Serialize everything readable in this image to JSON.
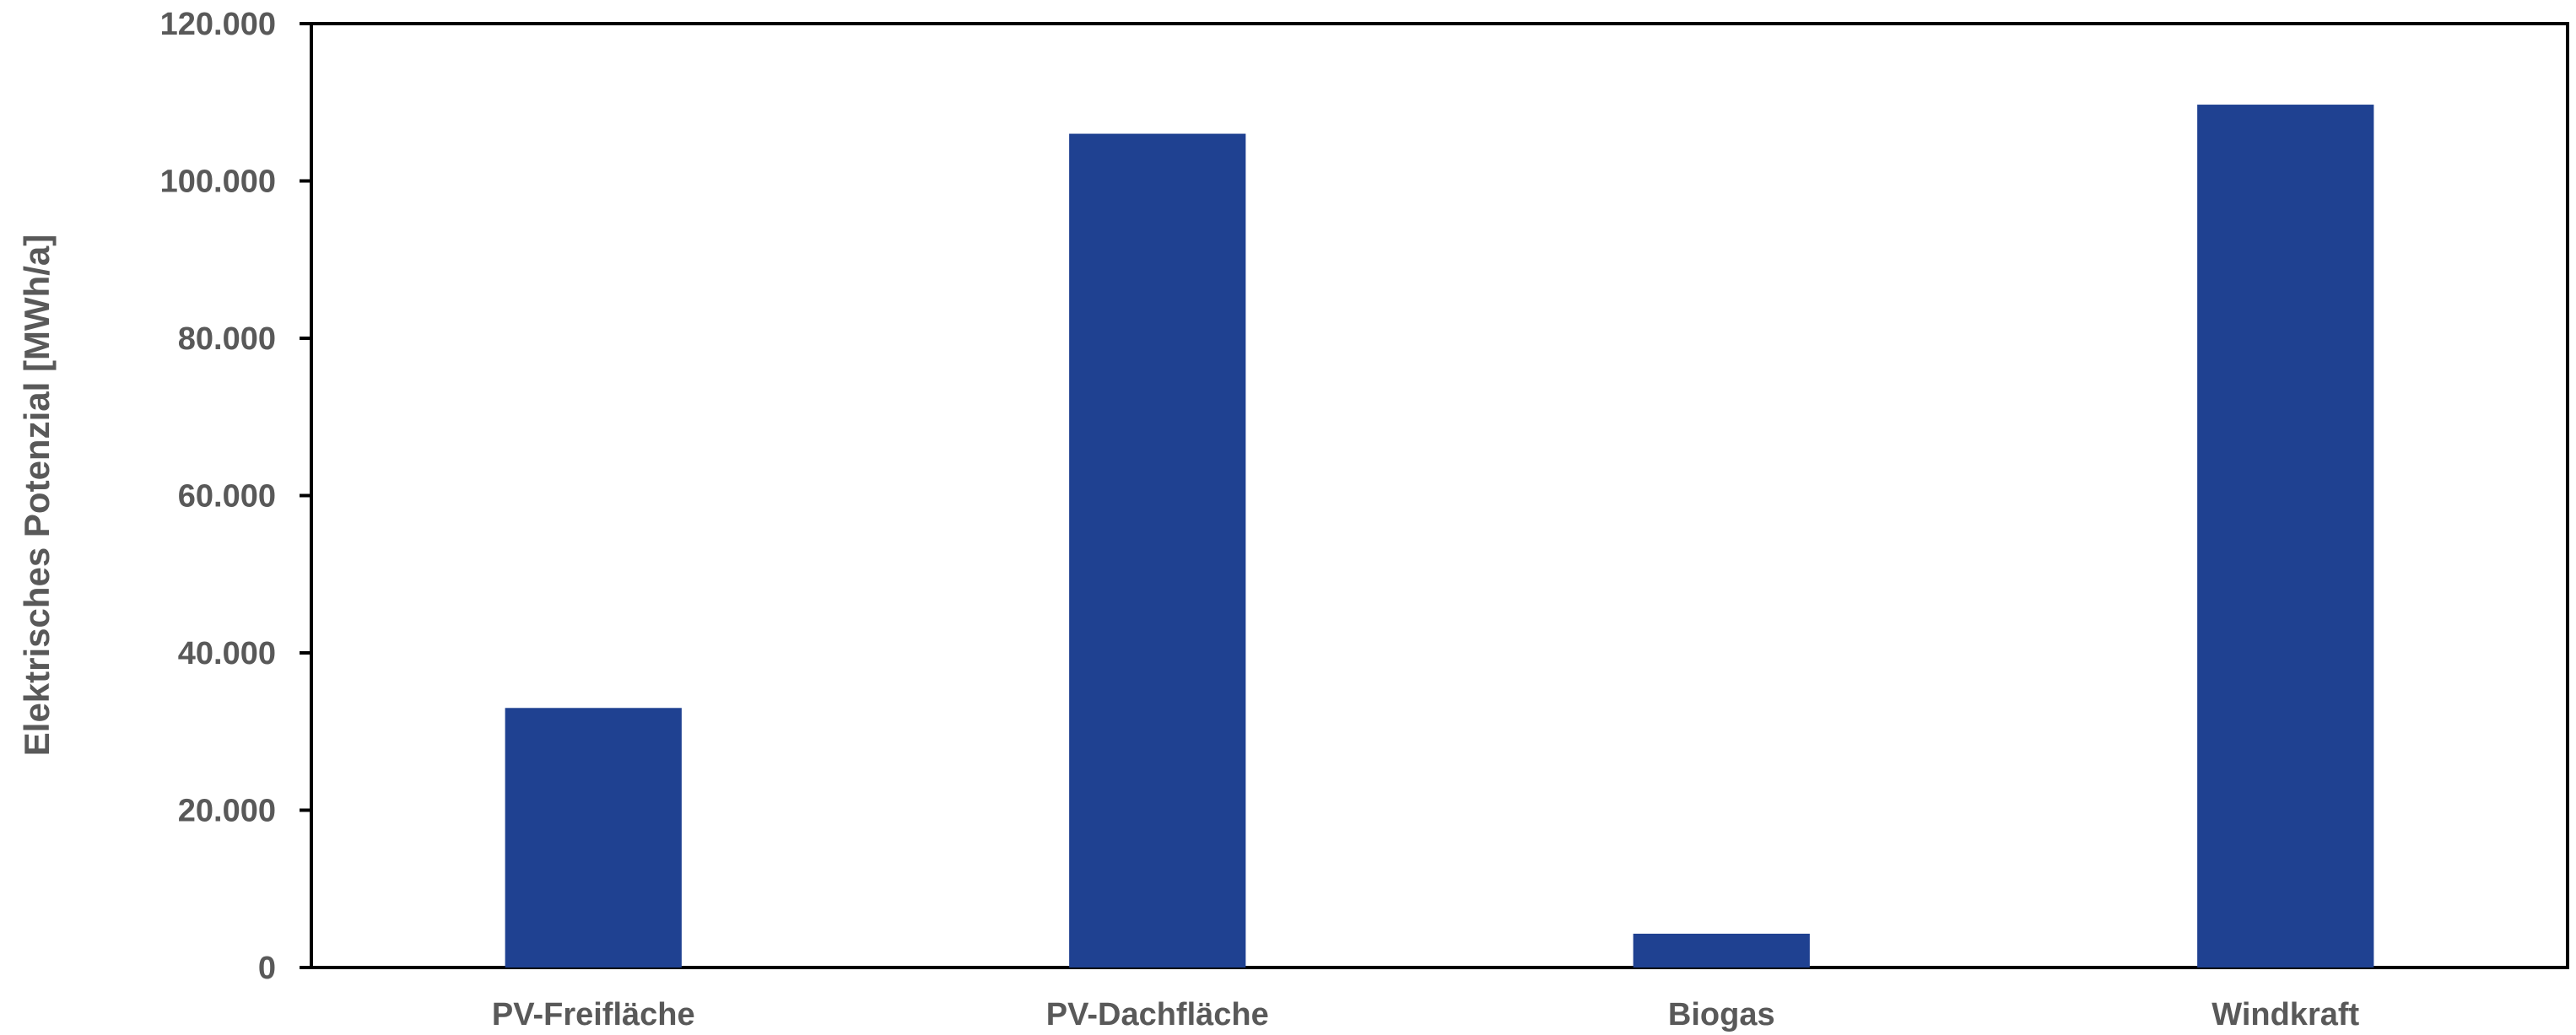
{
  "chart_data": {
    "type": "bar",
    "title": "",
    "xlabel": "",
    "ylabel": "Elektrisches Potenzial [MWh/a]",
    "categories": [
      "PV-Freifläche",
      "PV-Dachfläche",
      "Biogas",
      "Windkraft"
    ],
    "values": [
      33000,
      106000,
      4300,
      109700
    ],
    "ylim": [
      0,
      120000
    ],
    "yticks": [
      0,
      20000,
      40000,
      60000,
      80000,
      100000,
      120000
    ],
    "ytick_labels": [
      "0",
      "20.000",
      "40.000",
      "60.000",
      "80.000",
      "100.000",
      "120.000"
    ],
    "grid": false,
    "legend": "none",
    "colors": {
      "bar": "#1F4191",
      "axis": "#000000",
      "text": "#595959"
    }
  }
}
